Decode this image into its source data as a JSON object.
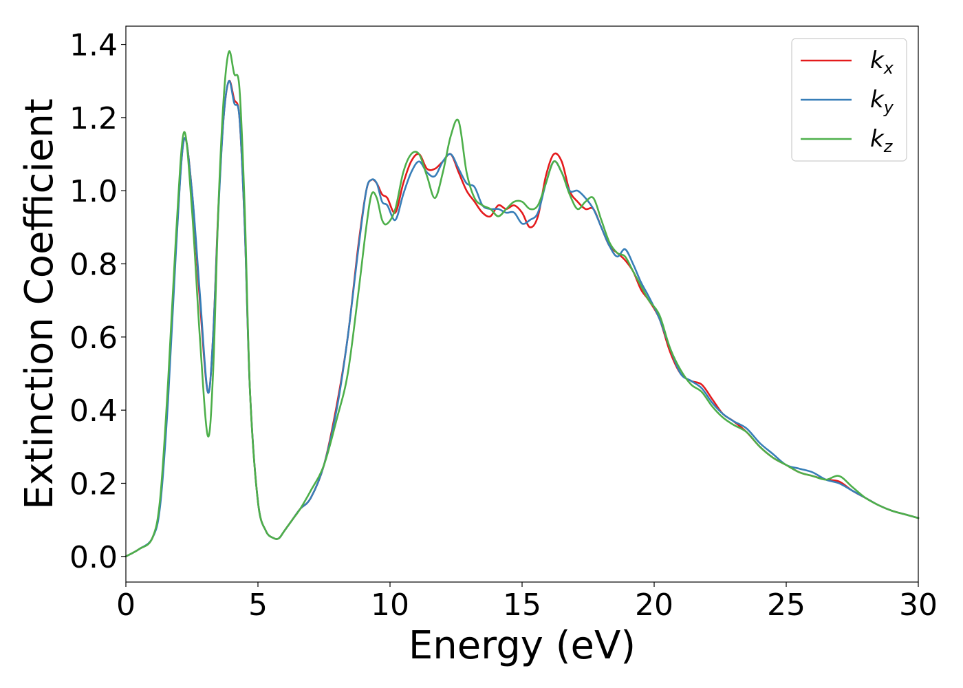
{
  "chart_data": {
    "type": "line",
    "xlabel": "Energy (eV)",
    "ylabel": "Extinction Coefficient",
    "xlim": [
      0,
      30
    ],
    "ylim": [
      -0.07,
      1.45
    ],
    "xticks": [
      0,
      5,
      10,
      15,
      20,
      25,
      30
    ],
    "xtick_labels": [
      "0",
      "5",
      "10",
      "15",
      "20",
      "25",
      "30"
    ],
    "yticks": [
      0.0,
      0.2,
      0.4,
      0.6,
      0.8,
      1.0,
      1.2,
      1.4
    ],
    "ytick_labels": [
      "0.0",
      "0.2",
      "0.4",
      "0.6",
      "0.8",
      "1.0",
      "1.2",
      "1.4"
    ],
    "grid": false,
    "legend_position": "top-right",
    "series": [
      {
        "name": "k",
        "subscript": "x",
        "color": "#e41a1c",
        "x": [
          0,
          0.5,
          1,
          1.3,
          1.6,
          1.9,
          2.2,
          2.5,
          2.8,
          3.1,
          3.3,
          3.5,
          3.7,
          3.9,
          4.1,
          4.3,
          4.5,
          4.7,
          5,
          5.3,
          5.6,
          5.8,
          6,
          6.3,
          6.6,
          7,
          7.5,
          8,
          8.4,
          8.8,
          9.1,
          9.3,
          9.5,
          9.7,
          9.9,
          10.2,
          10.5,
          10.8,
          11.1,
          11.4,
          11.7,
          12,
          12.3,
          12.6,
          12.9,
          13.2,
          13.5,
          13.8,
          14.1,
          14.4,
          14.7,
          15,
          15.3,
          15.6,
          15.9,
          16.2,
          16.5,
          16.8,
          17.1,
          17.4,
          17.7,
          18,
          18.3,
          18.6,
          18.9,
          19.2,
          19.5,
          19.8,
          20.2,
          20.6,
          21,
          21.4,
          21.8,
          22.2,
          22.6,
          23,
          23.5,
          24,
          24.5,
          25,
          25.5,
          26,
          26.5,
          27,
          27.5,
          28,
          28.5,
          29,
          29.5,
          30
        ],
        "y": [
          0,
          0.02,
          0.05,
          0.15,
          0.45,
          0.85,
          1.14,
          1.0,
          0.7,
          0.45,
          0.6,
          0.95,
          1.2,
          1.3,
          1.25,
          1.2,
          0.9,
          0.45,
          0.15,
          0.07,
          0.05,
          0.05,
          0.07,
          0.1,
          0.13,
          0.16,
          0.25,
          0.42,
          0.6,
          0.85,
          1.0,
          1.03,
          1.02,
          0.99,
          0.98,
          0.94,
          1.02,
          1.08,
          1.1,
          1.06,
          1.06,
          1.08,
          1.1,
          1.05,
          1.0,
          0.97,
          0.94,
          0.93,
          0.96,
          0.95,
          0.96,
          0.94,
          0.9,
          0.93,
          1.04,
          1.1,
          1.08,
          1.0,
          0.97,
          0.95,
          0.95,
          0.9,
          0.85,
          0.83,
          0.81,
          0.78,
          0.73,
          0.7,
          0.65,
          0.56,
          0.5,
          0.48,
          0.47,
          0.43,
          0.39,
          0.37,
          0.34,
          0.3,
          0.27,
          0.25,
          0.23,
          0.22,
          0.21,
          0.205,
          0.18,
          0.16,
          0.14,
          0.125,
          0.115,
          0.105
        ]
      },
      {
        "name": "k",
        "subscript": "y",
        "color": "#377eb8",
        "x": [
          0,
          0.5,
          1,
          1.3,
          1.6,
          1.9,
          2.2,
          2.5,
          2.8,
          3.1,
          3.3,
          3.5,
          3.7,
          3.9,
          4.1,
          4.3,
          4.5,
          4.7,
          5,
          5.3,
          5.6,
          5.8,
          6,
          6.3,
          6.6,
          7,
          7.5,
          8,
          8.4,
          8.8,
          9.1,
          9.3,
          9.5,
          9.7,
          9.9,
          10.2,
          10.5,
          10.8,
          11.1,
          11.4,
          11.7,
          12,
          12.3,
          12.6,
          12.9,
          13.2,
          13.5,
          13.8,
          14.1,
          14.4,
          14.7,
          15,
          15.3,
          15.6,
          15.9,
          16.2,
          16.5,
          16.8,
          17.1,
          17.4,
          17.7,
          18,
          18.3,
          18.6,
          18.9,
          19.2,
          19.5,
          19.8,
          20.2,
          20.6,
          21,
          21.4,
          21.8,
          22.2,
          22.6,
          23,
          23.5,
          24,
          24.5,
          25,
          25.5,
          26,
          26.5,
          27,
          27.5,
          28,
          28.5,
          29,
          29.5,
          30
        ],
        "y": [
          0,
          0.02,
          0.05,
          0.14,
          0.43,
          0.84,
          1.14,
          1.0,
          0.72,
          0.45,
          0.6,
          0.94,
          1.2,
          1.3,
          1.24,
          1.2,
          0.9,
          0.45,
          0.15,
          0.07,
          0.05,
          0.05,
          0.07,
          0.1,
          0.13,
          0.16,
          0.25,
          0.41,
          0.6,
          0.84,
          1.0,
          1.03,
          1.02,
          0.97,
          0.96,
          0.92,
          0.99,
          1.05,
          1.08,
          1.05,
          1.04,
          1.08,
          1.1,
          1.06,
          1.02,
          1.01,
          0.96,
          0.95,
          0.95,
          0.94,
          0.94,
          0.91,
          0.92,
          0.94,
          1.02,
          1.08,
          1.05,
          1.0,
          1.0,
          0.98,
          0.95,
          0.9,
          0.85,
          0.82,
          0.84,
          0.8,
          0.75,
          0.71,
          0.65,
          0.57,
          0.5,
          0.48,
          0.46,
          0.42,
          0.39,
          0.37,
          0.35,
          0.31,
          0.28,
          0.25,
          0.24,
          0.23,
          0.21,
          0.2,
          0.18,
          0.16,
          0.14,
          0.125,
          0.115,
          0.105
        ]
      },
      {
        "name": "k",
        "subscript": "z",
        "color": "#4daf4a",
        "x": [
          0,
          0.5,
          1,
          1.3,
          1.6,
          1.9,
          2.2,
          2.5,
          2.8,
          3.1,
          3.3,
          3.5,
          3.7,
          3.9,
          4.1,
          4.3,
          4.5,
          4.7,
          5,
          5.3,
          5.6,
          5.8,
          6,
          6.3,
          6.6,
          7,
          7.5,
          8,
          8.4,
          8.8,
          9.1,
          9.3,
          9.5,
          9.7,
          9.9,
          10.2,
          10.5,
          10.8,
          11.1,
          11.4,
          11.7,
          12,
          12.3,
          12.6,
          12.9,
          13.2,
          13.5,
          13.8,
          14.1,
          14.4,
          14.7,
          15,
          15.3,
          15.6,
          15.9,
          16.2,
          16.5,
          16.8,
          17.1,
          17.4,
          17.7,
          18,
          18.3,
          18.6,
          18.9,
          19.2,
          19.5,
          19.8,
          20.2,
          20.6,
          21,
          21.4,
          21.8,
          22.2,
          22.6,
          23,
          23.5,
          24,
          24.5,
          25,
          25.5,
          26,
          26.5,
          27,
          27.5,
          28,
          28.5,
          29,
          29.5,
          30
        ],
        "y": [
          0,
          0.02,
          0.05,
          0.16,
          0.48,
          0.88,
          1.16,
          0.95,
          0.6,
          0.33,
          0.5,
          0.95,
          1.25,
          1.38,
          1.32,
          1.28,
          0.95,
          0.45,
          0.15,
          0.07,
          0.05,
          0.05,
          0.07,
          0.1,
          0.13,
          0.18,
          0.25,
          0.38,
          0.5,
          0.72,
          0.9,
          0.99,
          0.98,
          0.92,
          0.91,
          0.95,
          1.05,
          1.1,
          1.1,
          1.04,
          0.98,
          1.05,
          1.15,
          1.19,
          1.05,
          0.98,
          0.96,
          0.95,
          0.93,
          0.95,
          0.97,
          0.97,
          0.95,
          0.96,
          1.02,
          1.08,
          1.05,
          0.99,
          0.95,
          0.97,
          0.98,
          0.92,
          0.86,
          0.83,
          0.82,
          0.78,
          0.74,
          0.7,
          0.66,
          0.57,
          0.51,
          0.47,
          0.45,
          0.41,
          0.38,
          0.36,
          0.34,
          0.3,
          0.27,
          0.25,
          0.23,
          0.22,
          0.21,
          0.22,
          0.19,
          0.16,
          0.14,
          0.125,
          0.115,
          0.105
        ]
      }
    ]
  }
}
